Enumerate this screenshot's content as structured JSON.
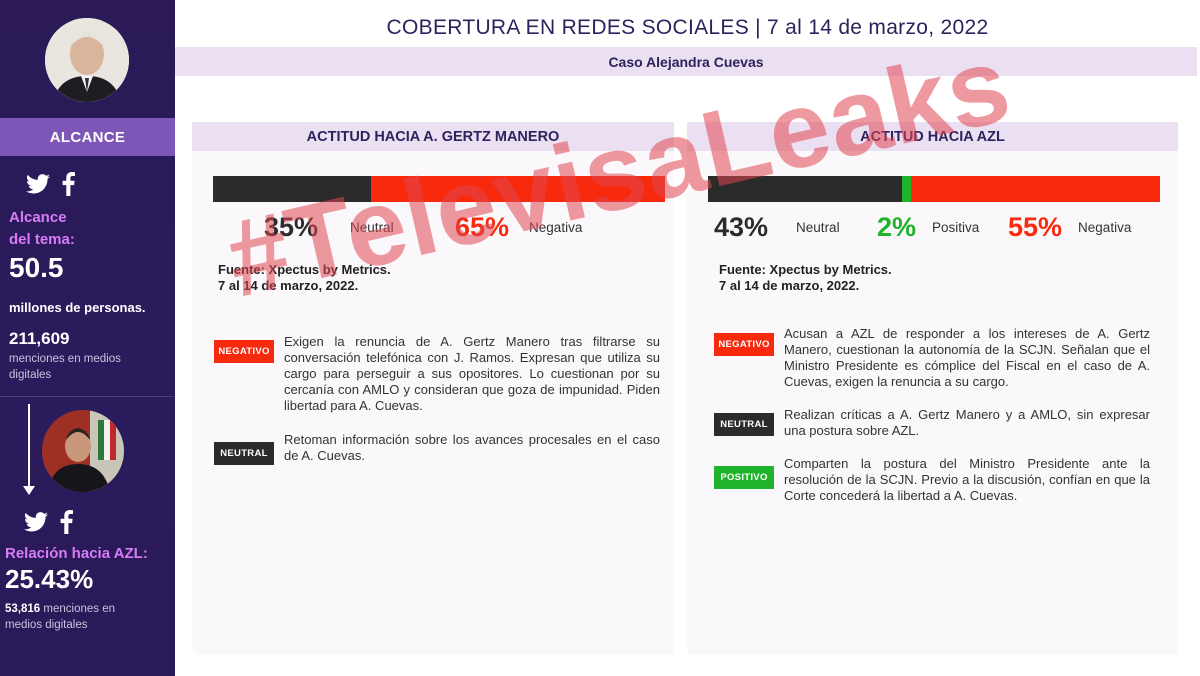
{
  "header": {
    "title": "COBERTURA EN REDES SOCIALES  | 7 al 14 de marzo, 2022",
    "subtitle": "Caso Alejandra Cuevas"
  },
  "sidebar": {
    "section_label": "ALCANCE",
    "social_icons": [
      "twitter-icon",
      "facebook-icon"
    ],
    "alcance_label_1": "Alcance",
    "alcance_label_2": "del tema:",
    "alcance_value": "50.5",
    "alcance_unit": "millones de personas.",
    "menciones_value": "211,609",
    "menciones_label_1": "menciones en medios",
    "menciones_label_2": "digitales",
    "relacion_label": "Relación hacia AZL:",
    "relacion_value": "25.43%",
    "relacion_menciones_value": "53,816",
    "relacion_menciones_label_1": "menciones en",
    "relacion_menciones_label_2": "medios digitales"
  },
  "left_panel": {
    "title": "ACTITUD HACIA A. GERTZ MANERO",
    "bar": [
      {
        "label": "Neutral",
        "value": 35,
        "color": "#2b2b2b"
      },
      {
        "label": "Negativa",
        "value": 65,
        "color": "#f82a0e"
      }
    ],
    "stats": [
      {
        "pct": "35%",
        "label": "Neutral",
        "color": "#2b2b2b"
      },
      {
        "pct": "65%",
        "label": "Negativa",
        "color": "#f82a0e"
      }
    ],
    "fuente_1": "Fuente: Xpectus by Metrics.",
    "fuente_2": "7 al 14 de marzo, 2022.",
    "items": [
      {
        "badge": "NEGATIVO",
        "text": "Exigen la renuncia de A. Gertz Manero tras filtrarse su conversación telefónica con J. Ramos. Expresan que utiliza su cargo para perseguir a sus opositores. Lo cuestionan por su cercanía con AMLO y consideran que goza de impunidad. Piden libertad para A. Cuevas."
      },
      {
        "badge": "NEUTRAL",
        "text": "Retoman información sobre los avances procesales en el caso de A. Cuevas."
      }
    ]
  },
  "right_panel": {
    "title": "ACTITUD HACIA AZL",
    "bar": [
      {
        "label": "Neutral",
        "value": 43,
        "color": "#2b2b2b"
      },
      {
        "label": "Positiva",
        "value": 2,
        "color": "#1eb32a"
      },
      {
        "label": "Negativa",
        "value": 55,
        "color": "#f82a0e"
      }
    ],
    "stats": [
      {
        "pct": "43%",
        "label": "Neutral",
        "color": "#2b2b2b"
      },
      {
        "pct": "2%",
        "label": "Positiva",
        "color": "#1eb32a"
      },
      {
        "pct": "55%",
        "label": "Negativa",
        "color": "#f82a0e"
      }
    ],
    "fuente_1": "Fuente: Xpectus by Metrics.",
    "fuente_2": "7 al 14 de marzo, 2022.",
    "items": [
      {
        "badge": "NEGATIVO",
        "text": "Acusan a AZL de responder a los intereses de A. Gertz Manero, cuestionan la autonomía de la SCJN. Señalan que el Ministro Presidente es cómplice del Fiscal en el caso de A. Cuevas, exigen la renuncia a su cargo."
      },
      {
        "badge": "NEUTRAL",
        "text": "Realizan críticas a A. Gertz Manero y a AMLO, sin expresar una postura sobre AZL."
      },
      {
        "badge": "POSITIVO",
        "text": "Comparten la postura del Ministro Presidente ante la resolución de la SCJN. Previo a la discusión, confían en que la Corte concederá la libertad a A. Cuevas."
      }
    ]
  },
  "watermark": "#TelevisaLeaks"
}
